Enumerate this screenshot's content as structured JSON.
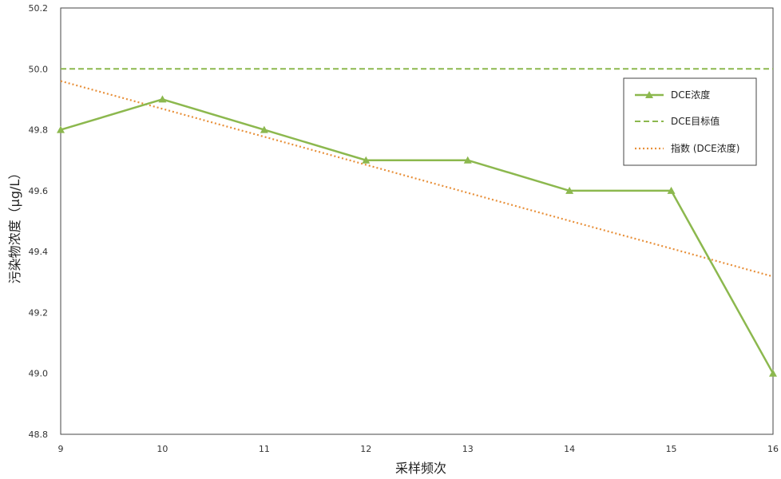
{
  "chart_data": {
    "type": "line",
    "xlabel": "采样频次",
    "ylabel": "污染物浓度（μg/L）",
    "x": [
      9,
      10,
      11,
      12,
      13,
      14,
      15,
      16
    ],
    "xlim": [
      9,
      16
    ],
    "ylim": [
      48.8,
      50.2
    ],
    "yticks": [
      "48.8",
      "49.0",
      "49.2",
      "49.4",
      "49.6",
      "49.8",
      "50.0",
      "50.2"
    ],
    "xticks": [
      "9",
      "10",
      "11",
      "12",
      "13",
      "14",
      "15",
      "16"
    ],
    "grid": false,
    "legend_position": "top-right",
    "series": [
      {
        "name": "DCE浓度",
        "style": "solid-with-triangle-markers",
        "color": "#8cb84e",
        "values": [
          49.8,
          49.9,
          49.8,
          49.7,
          49.7,
          49.6,
          49.6,
          49.0
        ]
      },
      {
        "name": "DCE目标值",
        "style": "dashed",
        "color": "#8cb84e",
        "values": [
          50.0,
          50.0,
          50.0,
          50.0,
          50.0,
          50.0,
          50.0,
          50.0
        ]
      },
      {
        "name": "指数 (DCE浓度)",
        "style": "dotted",
        "color": "#e8903a",
        "values": [
          49.96,
          49.869,
          49.777,
          49.685,
          49.593,
          49.501,
          49.41,
          49.318
        ]
      }
    ]
  }
}
